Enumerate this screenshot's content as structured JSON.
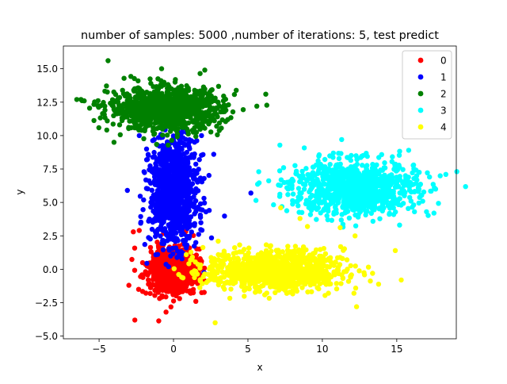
{
  "chart_data": {
    "type": "scatter",
    "title": "number of samples: 5000 ,number of iterations:  5, test predict",
    "xlabel": "x",
    "ylabel": "y",
    "xlim": [
      -7.4,
      19.0
    ],
    "ylim": [
      -5.2,
      16.7
    ],
    "x_ticks": [
      -5,
      0,
      5,
      10,
      15
    ],
    "x_tick_labels": [
      "−5",
      "0",
      "5",
      "10",
      "15"
    ],
    "y_ticks": [
      -5.0,
      -2.5,
      0.0,
      2.5,
      5.0,
      7.5,
      10.0,
      12.5,
      15.0
    ],
    "y_tick_labels": [
      "−5.0",
      "−2.5",
      "0.0",
      "2.5",
      "5.0",
      "7.5",
      "10.0",
      "12.5",
      "15.0"
    ],
    "grid": false,
    "legend_position": "top-right",
    "legend": [
      {
        "label": "0",
        "color": "#ff0000"
      },
      {
        "label": "1",
        "color": "#0000ff"
      },
      {
        "label": "2",
        "color": "#008000"
      },
      {
        "label": "3",
        "color": "#00ffff"
      },
      {
        "label": "4",
        "color": "#ffff00"
      }
    ],
    "clusters": [
      {
        "name": "0",
        "color": "#ff0000",
        "center": [
          0.0,
          -0.1
        ],
        "spread": [
          0.8,
          0.8
        ],
        "count": 1000,
        "outliers": [
          [
            -2.6,
            -3.8
          ],
          [
            -2.7,
            2.8
          ],
          [
            -2.3,
            2.9
          ],
          [
            1.5,
            -2.4
          ],
          [
            -3.0,
            -1.2
          ],
          [
            -0.5,
            -3.2
          ]
        ]
      },
      {
        "name": "1",
        "color": "#0000ff",
        "center": [
          0.0,
          5.8
        ],
        "spread": [
          0.8,
          2.0
        ],
        "count": 1000,
        "outliers": [
          [
            5.2,
            5.7
          ],
          [
            -3.1,
            5.9
          ],
          [
            -2.3,
            10.0
          ],
          [
            2.7,
            8.6
          ],
          [
            2.4,
            4.4
          ],
          [
            1.5,
            2.0
          ]
        ]
      },
      {
        "name": "2",
        "color": "#008000",
        "center": [
          -0.5,
          12.0
        ],
        "spread": [
          1.9,
          0.8
        ],
        "count": 1000,
        "outliers": [
          [
            -4.4,
            15.6
          ],
          [
            -6.5,
            12.7
          ],
          [
            -6.0,
            12.6
          ],
          [
            -4.0,
            9.5
          ],
          [
            -0.8,
            15.0
          ],
          [
            6.2,
            13.1
          ],
          [
            2.1,
            14.9
          ],
          [
            5.6,
            12.2
          ]
        ]
      },
      {
        "name": "3",
        "color": "#00ffff",
        "center": [
          12.1,
          6.1
        ],
        "spread": [
          2.1,
          1.0
        ],
        "count": 1000,
        "outliers": [
          [
            11.3,
            9.7
          ],
          [
            17.5,
            4.2
          ],
          [
            18.3,
            7.1
          ],
          [
            17.2,
            6.9
          ],
          [
            7.7,
            6.0
          ],
          [
            15.8,
            8.9
          ],
          [
            17.0,
            4.3
          ]
        ]
      },
      {
        "name": "4",
        "color": "#ffff00",
        "center": [
          6.8,
          -0.1
        ],
        "spread": [
          2.3,
          0.75
        ],
        "count": 1000,
        "outliers": [
          [
            2.8,
            -4.0
          ],
          [
            12.3,
            -2.8
          ],
          [
            15.3,
            -0.8
          ],
          [
            14.9,
            1.4
          ],
          [
            12.2,
            2.5
          ],
          [
            9.0,
            3.2
          ],
          [
            8.5,
            3.8
          ],
          [
            7.2,
            4.6
          ],
          [
            3.0,
            2.1
          ]
        ]
      }
    ]
  }
}
